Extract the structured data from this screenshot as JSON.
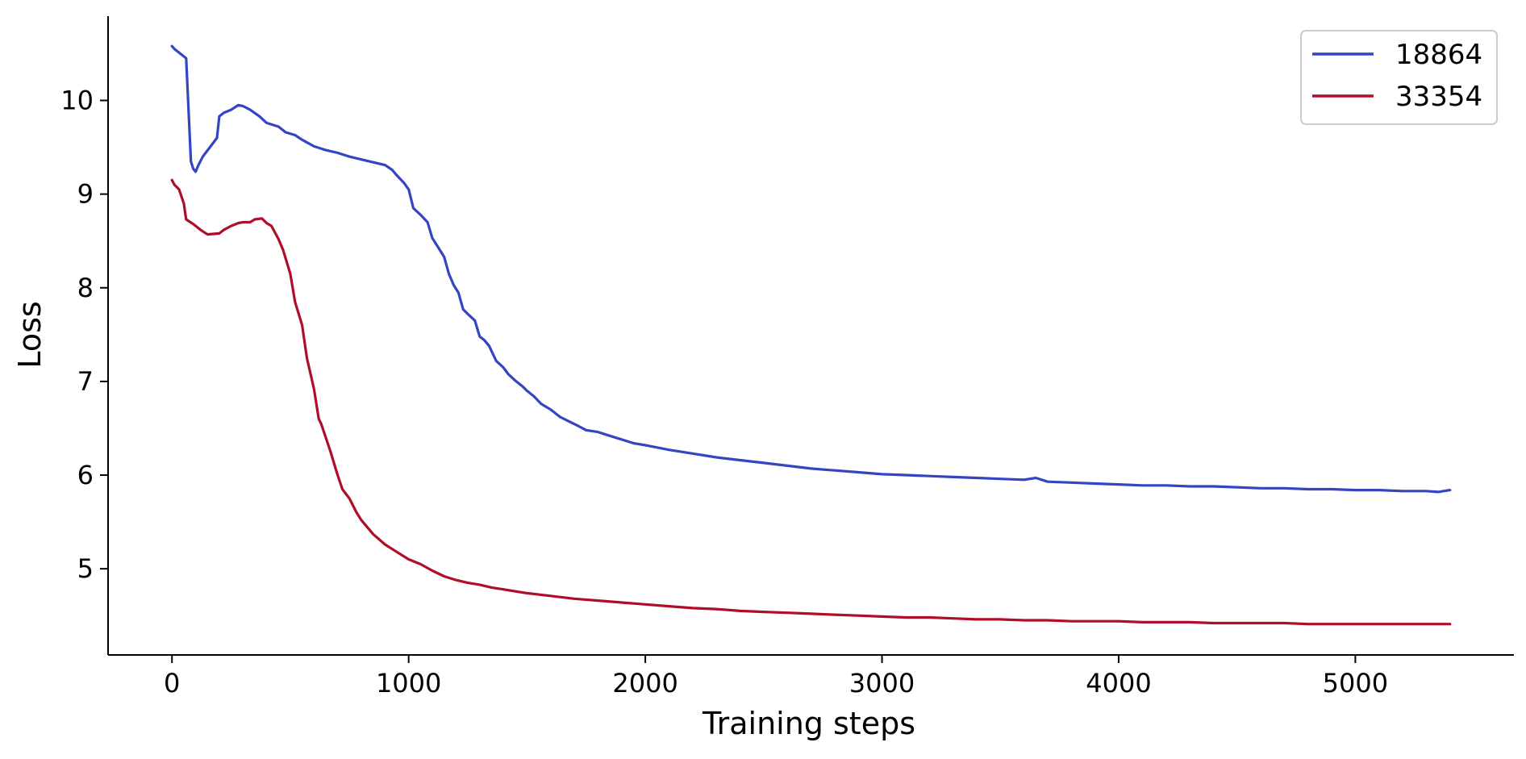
{
  "chart_data": {
    "type": "line",
    "title": "",
    "xlabel": "Training steps",
    "ylabel": "Loss",
    "xlim": [
      -270,
      5670
    ],
    "ylim": [
      4.08,
      10.9
    ],
    "xticks": [
      0,
      1000,
      2000,
      3000,
      4000,
      5000
    ],
    "yticks": [
      5,
      6,
      7,
      8,
      9,
      10
    ],
    "grid": false,
    "legend_position": "top-right",
    "series": [
      {
        "name": "18864",
        "color": "#3545c2",
        "x": [
          0,
          10,
          20,
          40,
          60,
          80,
          90,
          100,
          110,
          130,
          160,
          190,
          200,
          220,
          250,
          280,
          300,
          330,
          370,
          400,
          450,
          480,
          520,
          550,
          600,
          650,
          700,
          750,
          800,
          850,
          900,
          930,
          950,
          980,
          1000,
          1020,
          1050,
          1080,
          1100,
          1120,
          1150,
          1170,
          1190,
          1210,
          1230,
          1250,
          1280,
          1300,
          1320,
          1340,
          1370,
          1400,
          1420,
          1450,
          1480,
          1500,
          1530,
          1560,
          1600,
          1640,
          1680,
          1720,
          1750,
          1800,
          1850,
          1900,
          1950,
          2000,
          2100,
          2200,
          2300,
          2400,
          2500,
          2600,
          2700,
          2800,
          2900,
          3000,
          3100,
          3200,
          3300,
          3400,
          3500,
          3600,
          3650,
          3700,
          3800,
          3900,
          4000,
          4100,
          4200,
          4300,
          4400,
          4500,
          4600,
          4700,
          4800,
          4900,
          5000,
          5100,
          5200,
          5300,
          5350,
          5400
        ],
        "values": [
          10.58,
          10.55,
          10.53,
          10.49,
          10.45,
          9.35,
          9.27,
          9.24,
          9.3,
          9.4,
          9.5,
          9.6,
          9.83,
          9.87,
          9.9,
          9.95,
          9.94,
          9.9,
          9.83,
          9.76,
          9.72,
          9.66,
          9.63,
          9.58,
          9.51,
          9.47,
          9.44,
          9.4,
          9.37,
          9.34,
          9.31,
          9.26,
          9.2,
          9.12,
          9.05,
          8.85,
          8.78,
          8.7,
          8.53,
          8.45,
          8.33,
          8.15,
          8.03,
          7.95,
          7.77,
          7.72,
          7.65,
          7.48,
          7.44,
          7.38,
          7.22,
          7.15,
          7.08,
          7.01,
          6.95,
          6.9,
          6.84,
          6.76,
          6.7,
          6.62,
          6.57,
          6.52,
          6.48,
          6.46,
          6.42,
          6.38,
          6.34,
          6.32,
          6.27,
          6.23,
          6.19,
          6.16,
          6.13,
          6.1,
          6.07,
          6.05,
          6.03,
          6.01,
          6.0,
          5.99,
          5.98,
          5.97,
          5.96,
          5.95,
          5.97,
          5.93,
          5.92,
          5.91,
          5.9,
          5.89,
          5.89,
          5.88,
          5.88,
          5.87,
          5.86,
          5.86,
          5.85,
          5.85,
          5.84,
          5.84,
          5.83,
          5.83,
          5.82,
          5.84
        ]
      },
      {
        "name": "33354",
        "color": "#b00d29",
        "x": [
          0,
          10,
          30,
          50,
          60,
          90,
          120,
          150,
          200,
          220,
          250,
          280,
          300,
          330,
          350,
          380,
          400,
          420,
          450,
          470,
          500,
          520,
          550,
          570,
          600,
          620,
          630,
          650,
          670,
          700,
          720,
          750,
          780,
          800,
          850,
          900,
          950,
          1000,
          1050,
          1100,
          1150,
          1200,
          1250,
          1300,
          1350,
          1400,
          1500,
          1600,
          1700,
          1800,
          1900,
          2000,
          2100,
          2200,
          2300,
          2400,
          2500,
          2600,
          2700,
          2800,
          2900,
          3000,
          3100,
          3200,
          3300,
          3400,
          3500,
          3600,
          3700,
          3800,
          3900,
          4000,
          4100,
          4200,
          4300,
          4400,
          4500,
          4600,
          4700,
          4800,
          4900,
          5000,
          5100,
          5200,
          5300,
          5400
        ],
        "values": [
          9.15,
          9.1,
          9.05,
          8.9,
          8.73,
          8.68,
          8.62,
          8.57,
          8.58,
          8.62,
          8.66,
          8.69,
          8.7,
          8.7,
          8.73,
          8.74,
          8.69,
          8.66,
          8.52,
          8.4,
          8.15,
          7.85,
          7.6,
          7.25,
          6.92,
          6.6,
          6.55,
          6.4,
          6.25,
          6.0,
          5.85,
          5.75,
          5.6,
          5.52,
          5.37,
          5.26,
          5.18,
          5.1,
          5.05,
          4.98,
          4.92,
          4.88,
          4.85,
          4.83,
          4.8,
          4.78,
          4.74,
          4.71,
          4.68,
          4.66,
          4.64,
          4.62,
          4.6,
          4.58,
          4.57,
          4.55,
          4.54,
          4.53,
          4.52,
          4.51,
          4.5,
          4.49,
          4.48,
          4.48,
          4.47,
          4.46,
          4.46,
          4.45,
          4.45,
          4.44,
          4.44,
          4.44,
          4.43,
          4.43,
          4.43,
          4.42,
          4.42,
          4.42,
          4.42,
          4.41,
          4.41,
          4.41,
          4.41,
          4.41,
          4.41,
          4.41
        ]
      }
    ]
  }
}
